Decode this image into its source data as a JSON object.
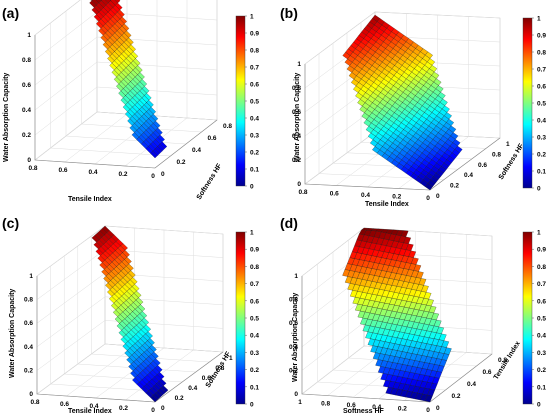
{
  "figure": {
    "colormap": "jet",
    "colormap_stops": [
      "#00008f",
      "#0000ff",
      "#0080ff",
      "#00ffff",
      "#80ff80",
      "#ffff00",
      "#ff8000",
      "#ff0000",
      "#800000"
    ]
  },
  "chart_data": [
    {
      "panel_label": "(a)",
      "type": "surface3d",
      "xlabel": "Tensile Index",
      "ylabel": "Softness HF",
      "zlabel": "Water Absorption Capacity",
      "x_ticks": [
        "0.8",
        "0.6",
        "0.4",
        "0.2",
        "0"
      ],
      "y_ticks": [
        "0",
        "0.2",
        "0.4",
        "0.6",
        "0.8"
      ],
      "z_ticks": [
        "0",
        "0.2",
        "0.4",
        "0.6",
        "0.8",
        "1"
      ],
      "colorbar_ticks": [
        "0",
        "0.1",
        "0.2",
        "0.3",
        "0.4",
        "0.5",
        "0.6",
        "0.7",
        "0.8",
        "0.9",
        "1"
      ],
      "grid": true,
      "xlim": [
        0,
        0.9
      ],
      "ylim": [
        0,
        0.8
      ],
      "zlim": [
        0,
        1
      ],
      "surface": {
        "x_range": [
          0,
          0.9
        ],
        "y_range": [
          0,
          0.8
        ],
        "z_coeffs": {
          "a": 0.08,
          "bx": 1.0,
          "by": 0.12
        },
        "z_range_visible": [
          0.05,
          1.05
        ]
      }
    },
    {
      "panel_label": "(b)",
      "type": "surface3d",
      "xlabel": "Tensile Index",
      "ylabel": "Softness HF",
      "zlabel": "Water Absorption Capacity",
      "x_ticks": [
        "0.8",
        "0.6",
        "0.4",
        "0.2",
        "0"
      ],
      "y_ticks": [
        "0",
        "0.2",
        "0.4",
        "0.6",
        "0.8",
        "1"
      ],
      "z_ticks": [
        "0",
        "0.2",
        "0.4",
        "0.6",
        "0.8",
        "1"
      ],
      "colorbar_ticks": [
        "0",
        "0.1",
        "0.2",
        "0.3",
        "0.4",
        "0.5",
        "0.6",
        "0.7",
        "0.8",
        "0.9",
        "1"
      ],
      "grid": true,
      "xlim": [
        0,
        0.9
      ],
      "ylim": [
        0,
        1
      ],
      "zlim": [
        0,
        1
      ],
      "surface": {
        "x_range": [
          0,
          0.9
        ],
        "y_range": [
          0,
          1
        ],
        "z_coeffs": {
          "a": 0.0,
          "bx": 0.75,
          "by": 0.3
        },
        "z_range_visible": [
          0,
          1
        ]
      }
    },
    {
      "panel_label": "(c)",
      "type": "surface3d",
      "xlabel": "Tensile Index",
      "ylabel": "Softness HF",
      "zlabel": "Water Absorption Capacity",
      "x_ticks": [
        "0.8",
        "0.6",
        "0.4",
        "0.2",
        "0"
      ],
      "y_ticks": [
        "0",
        "0.2",
        "0.4",
        "0.6",
        "0.8",
        "1"
      ],
      "z_ticks": [
        "0",
        "0.2",
        "0.4",
        "0.6",
        "0.8",
        "1"
      ],
      "colorbar_ticks": [
        "0",
        "0.1",
        "0.2",
        "0.3",
        "0.4",
        "0.5",
        "0.6",
        "0.7",
        "0.8",
        "0.9",
        "1"
      ],
      "grid": true,
      "xlim": [
        0,
        0.9
      ],
      "ylim": [
        0,
        1
      ],
      "zlim": [
        0,
        1
      ],
      "surface": {
        "x_range": [
          0,
          0.9
        ],
        "y_range": [
          0,
          1
        ],
        "z_coeffs": {
          "a": 0.0,
          "bx": 1.0,
          "by": 0.1
        },
        "z_range_visible": [
          0,
          1
        ]
      }
    },
    {
      "panel_label": "(d)",
      "type": "surface3d",
      "xlabel": "Softness HF",
      "ylabel": "Tensile Index",
      "zlabel": "Water Absorption Capacity",
      "x_ticks": [
        "1",
        "0.8",
        "0.6",
        "0.4",
        "0.2",
        "0"
      ],
      "y_ticks": [
        "0",
        "0.2",
        "0.4",
        "0.6",
        "0.8"
      ],
      "z_ticks": [
        "0",
        "0.2",
        "0.4",
        "0.6",
        "0.8",
        "1"
      ],
      "colorbar_ticks": [
        "0",
        "0.1",
        "0.2",
        "0.3",
        "0.4",
        "0.5",
        "0.6",
        "0.7",
        "0.8",
        "0.9",
        "1"
      ],
      "grid": true,
      "xlim": [
        0,
        1
      ],
      "ylim": [
        0,
        0.9
      ],
      "zlim": [
        0,
        1
      ],
      "surface": {
        "x_range": [
          0,
          1
        ],
        "y_range": [
          0,
          0.9
        ],
        "z_coeffs": {
          "a": 0.0,
          "bx": 0.15,
          "by": 1.0
        },
        "z_range_visible": [
          0,
          1
        ]
      }
    }
  ]
}
